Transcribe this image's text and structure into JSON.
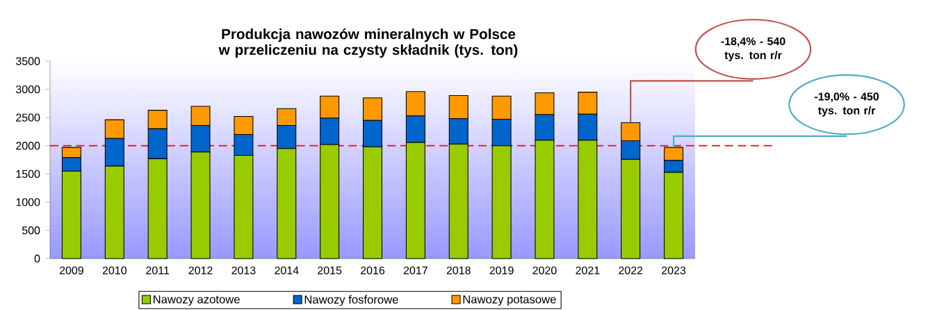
{
  "chart_data": {
    "type": "bar",
    "stacked": true,
    "title": "Produkcja nawozów mineralnych w Polsce w przeliczeniu na czysty składnik (tys. ton)",
    "categories": [
      "2009",
      "2010",
      "2011",
      "2012",
      "2013",
      "2014",
      "2015",
      "2016",
      "2017",
      "2018",
      "2019",
      "2020",
      "2021",
      "2022",
      "2023"
    ],
    "series": [
      {
        "name": "Nawozy azotowe",
        "color": "#99cc00",
        "values": [
          1550,
          1640,
          1770,
          1890,
          1830,
          1950,
          2020,
          1980,
          2060,
          2030,
          2000,
          2100,
          2100,
          1760,
          1530
        ]
      },
      {
        "name": "Nawozy fosforowe",
        "color": "#0066cc",
        "values": [
          240,
          490,
          530,
          470,
          370,
          410,
          470,
          470,
          470,
          450,
          470,
          450,
          460,
          330,
          210
        ]
      },
      {
        "name": "Nawozy potasowe",
        "color": "#ff9900",
        "values": [
          180,
          330,
          330,
          340,
          320,
          300,
          390,
          400,
          430,
          410,
          410,
          390,
          390,
          320,
          230
        ]
      }
    ],
    "ylim": [
      0,
      3500
    ],
    "yticks": [
      0,
      500,
      1000,
      1500,
      2000,
      2500,
      3000,
      3500
    ],
    "ref_lines": [
      {
        "axis": "y",
        "value": 2000,
        "color": "#ff0000",
        "line_style": "dashed"
      }
    ],
    "annotations": [
      "-18,4% - 540 tys. ton r/r",
      "-19,0% - 450 tys. ton r/r"
    ],
    "legend": "bottom",
    "grid": false
  }
}
